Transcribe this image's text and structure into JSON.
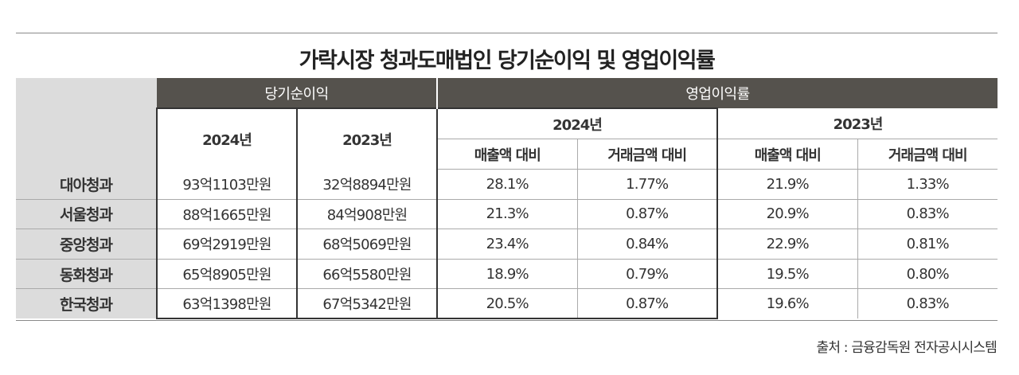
{
  "title": "가락시장 청과도매법인 당기순이익 및 영업이익률",
  "groups": {
    "net_income": "당기순이익",
    "op_margin": "영업이익률"
  },
  "years": {
    "y2024": "2024년",
    "y2023": "2023년"
  },
  "sub": {
    "sales": "매출액 대비",
    "trade": "거래금액 대비"
  },
  "rows": [
    {
      "name": "대아청과",
      "ni2024": "93억1103만원",
      "ni2023": "32억8894만원",
      "s2024": "28.1%",
      "t2024": "1.77%",
      "s2023": "21.9%",
      "t2023": "1.33%"
    },
    {
      "name": "서울청과",
      "ni2024": "88억1665만원",
      "ni2023": "84억908만원",
      "s2024": "21.3%",
      "t2024": "0.87%",
      "s2023": "20.9%",
      "t2023": "0.83%"
    },
    {
      "name": "중앙청과",
      "ni2024": "69억2919만원",
      "ni2023": "68억5069만원",
      "s2024": "23.4%",
      "t2024": "0.84%",
      "s2023": "22.9%",
      "t2023": "0.81%"
    },
    {
      "name": "동화청과",
      "ni2024": "65억8905만원",
      "ni2023": "66억5580만원",
      "s2024": "18.9%",
      "t2024": "0.79%",
      "s2023": "19.5%",
      "t2023": "0.80%"
    },
    {
      "name": "한국청과",
      "ni2024": "63억1398만원",
      "ni2023": "67억5342만원",
      "s2024": "20.5%",
      "t2024": "0.87%",
      "s2023": "19.6%",
      "t2023": "0.83%"
    }
  ],
  "source": "출처 : 금융감독원 전자공시시스템",
  "colors": {
    "header_bg": "#55524d",
    "rowhead_bg": "#dcdcdc",
    "border_dark": "#333333"
  }
}
